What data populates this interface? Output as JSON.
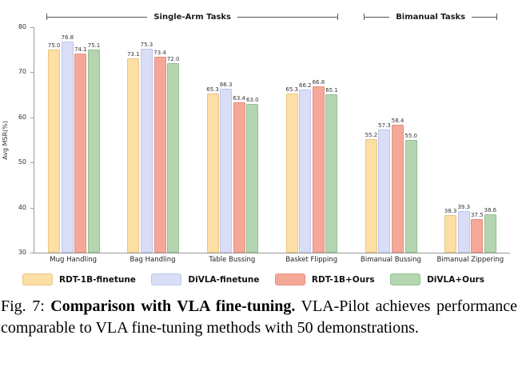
{
  "figure": {
    "caption_prefix": "Fig. 7: ",
    "caption_bold": "Comparison with VLA fine-tuning.",
    "caption_rest": " VLA-Pilot achieves performance comparable to VLA fine-tuning methods with 50 demonstrations."
  },
  "chart_data": {
    "type": "bar",
    "title": "",
    "xlabel": "",
    "ylabel": "Avg MSR(%)",
    "ylim": [
      30,
      80
    ],
    "yticks": [
      30,
      40,
      50,
      60,
      70,
      80
    ],
    "grid": false,
    "legend_position": "bottom",
    "categories": [
      "Mug Handling",
      "Bag Handling",
      "Table Bussing",
      "Basket Flipping",
      "Bimanual Bussing",
      "Bimanual Zippering"
    ],
    "series": [
      {
        "name": "RDT-1B-finetune",
        "color": "#FBDFA4",
        "border": "#e9c684",
        "values": [
          75.0,
          73.1,
          65.3,
          65.3,
          55.2,
          38.3
        ]
      },
      {
        "name": "DiVLA-finetune",
        "color": "#D9DEF6",
        "border": "#bcc4ec",
        "values": [
          76.8,
          75.3,
          66.3,
          66.2,
          57.3,
          39.3
        ]
      },
      {
        "name": "RDT-1B+Ours",
        "color": "#F6A torch898",
        "border": "#e39181",
        "values": [
          74.1,
          73.4,
          63.4,
          66.8,
          58.4,
          37.5
        ]
      },
      {
        "name": "DiVLA+Ours",
        "color": "#B3D5B0",
        "border": "#96bf93",
        "values": [
          75.1,
          72.0,
          63.0,
          65.1,
          55.0,
          38.6
        ]
      }
    ],
    "brackets": [
      {
        "label": "Single-Arm Tasks",
        "start": 0,
        "end": 3
      },
      {
        "label": "Bimanual Tasks",
        "start": 4,
        "end": 5
      }
    ]
  }
}
